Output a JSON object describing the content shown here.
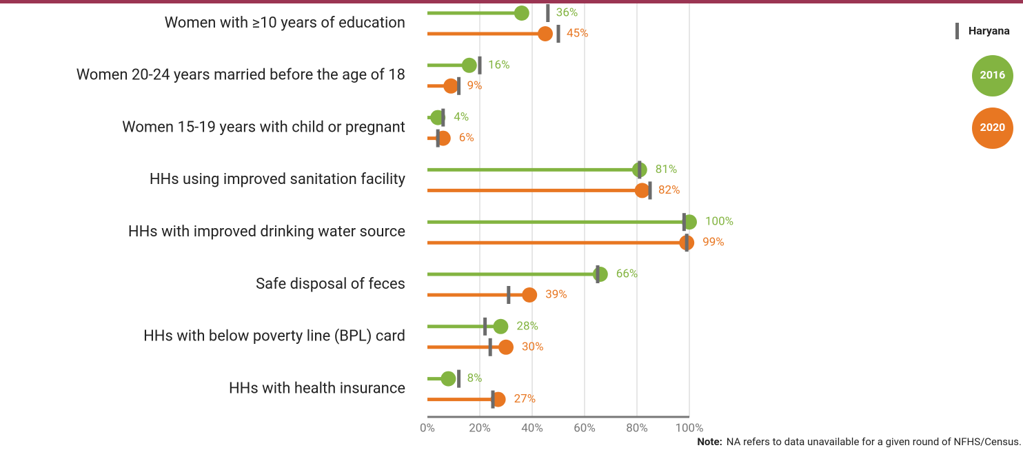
{
  "chart_data": {
    "type": "lollipop",
    "categories": [
      "Women with ≥10 years of education",
      "Women 20-24 years married before the age of 18",
      "Women 15-19 years with child or pregnant",
      "HHs using improved sanitation facility",
      "HHs with improved drinking water source",
      "Safe disposal of feces",
      "HHs with below poverty line (BPL) card",
      "HHs with health insurance"
    ],
    "reference_name": "Haryana",
    "reference_color": "#6b6b6b",
    "series": [
      {
        "name": "2016",
        "color": "#83b441",
        "values": [
          36,
          16,
          4,
          81,
          100,
          66,
          28,
          8
        ],
        "value_labels": [
          "36%",
          "16%",
          "4%",
          "81%",
          "100%",
          "66%",
          "28%",
          "8%"
        ],
        "reference_values": [
          46,
          20,
          6,
          81,
          98,
          65,
          22,
          12
        ]
      },
      {
        "name": "2020",
        "color": "#e87722",
        "values": [
          45,
          9,
          6,
          82,
          99,
          39,
          30,
          27
        ],
        "value_labels": [
          "45%",
          "9%",
          "6%",
          "82%",
          "99%",
          "39%",
          "30%",
          "27%"
        ],
        "reference_values": [
          50,
          12,
          4,
          85,
          99,
          31,
          24,
          25
        ]
      }
    ],
    "xlim": [
      0,
      100
    ],
    "xticks": [
      {
        "value": 0,
        "label": "0%"
      },
      {
        "value": 20,
        "label": "20%"
      },
      {
        "value": 40,
        "label": "40%"
      },
      {
        "value": 60,
        "label": "60%"
      },
      {
        "value": 80,
        "label": "80%"
      },
      {
        "value": 100,
        "label": "100%"
      }
    ],
    "grid": true,
    "note": {
      "label": "Note:",
      "text": "NA refers to data unavailable for a given round of NFHS/Census."
    }
  }
}
